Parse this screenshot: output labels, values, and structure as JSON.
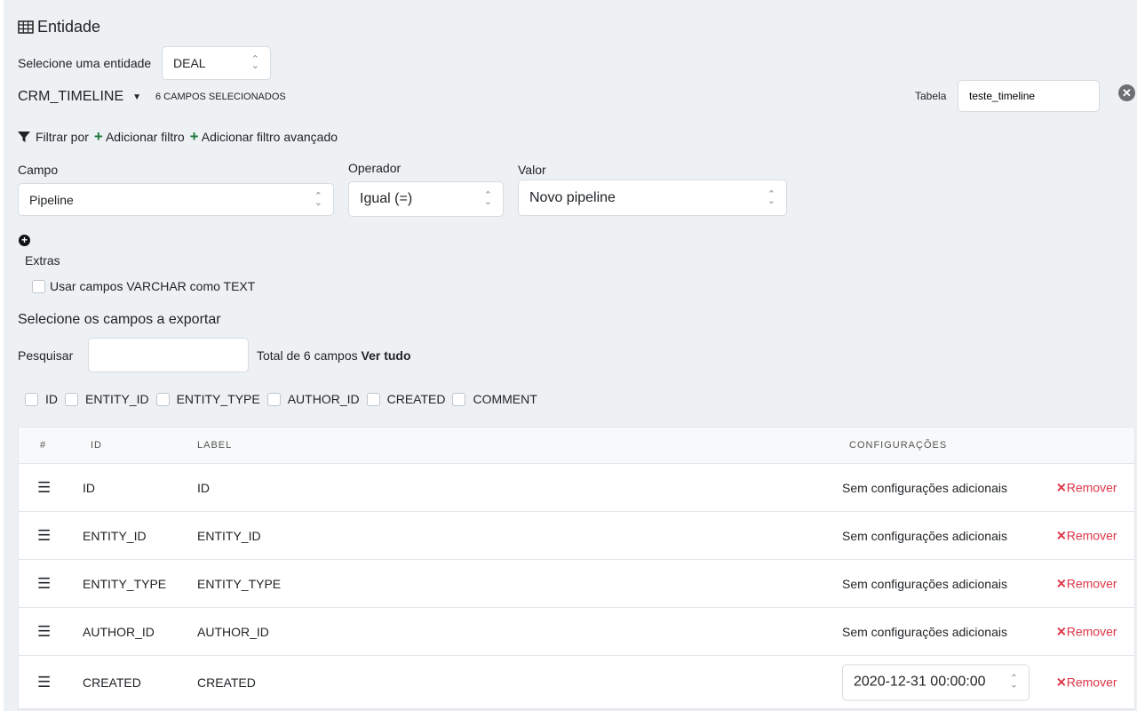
{
  "header": {
    "title": "Entidade",
    "icon": "table-icon"
  },
  "entity": {
    "label": "Selecione uma entidade",
    "value": "DEAL"
  },
  "source": {
    "name": "CRM_TIMELINE",
    "selected_count": "6 CAMPOS SELECIONADOS"
  },
  "tabela": {
    "label": "Tabela",
    "value": "teste_timeline"
  },
  "filter": {
    "label": "Filtrar por",
    "add": "Adicionar filtro",
    "add_advanced": "Adicionar filtro avançado",
    "campo_label": "Campo",
    "campo_value": "Pipeline",
    "operador_label": "Operador",
    "operador_value": "Igual (=)",
    "valor_label": "Valor",
    "valor_value": "Novo pipeline"
  },
  "extras": {
    "label": "Extras",
    "varchar": "Usar campos VARCHAR como TEXT"
  },
  "fields": {
    "title": "Selecione os campos a exportar",
    "search_label": "Pesquisar",
    "search_value": "",
    "total": "Total de 6 campos",
    "see_all": "Ver tudo",
    "checkboxes": [
      "ID",
      "ENTITY_ID",
      "ENTITY_TYPE",
      "AUTHOR_ID",
      "CREATED",
      "COMMENT"
    ]
  },
  "table": {
    "headers": [
      "#",
      "ID",
      "LABEL",
      "CONFIGURAÇÕES"
    ],
    "rows": [
      {
        "id": "ID",
        "label": "ID",
        "config": "Sem configurações adicionais"
      },
      {
        "id": "ENTITY_ID",
        "label": "ENTITY_ID",
        "config": "Sem configurações adicionais"
      },
      {
        "id": "ENTITY_TYPE",
        "label": "ENTITY_TYPE",
        "config": "Sem configurações adicionais"
      },
      {
        "id": "AUTHOR_ID",
        "label": "AUTHOR_ID",
        "config": "Sem configurações adicionais"
      },
      {
        "id": "CREATED",
        "label": "CREATED",
        "config_select": "2020-12-31 00:00:00"
      }
    ],
    "remove": "Remover"
  },
  "colors": {
    "accent_green": "#1f7a3d",
    "remove_red": "#dc3545",
    "background": "#edf1f4"
  }
}
